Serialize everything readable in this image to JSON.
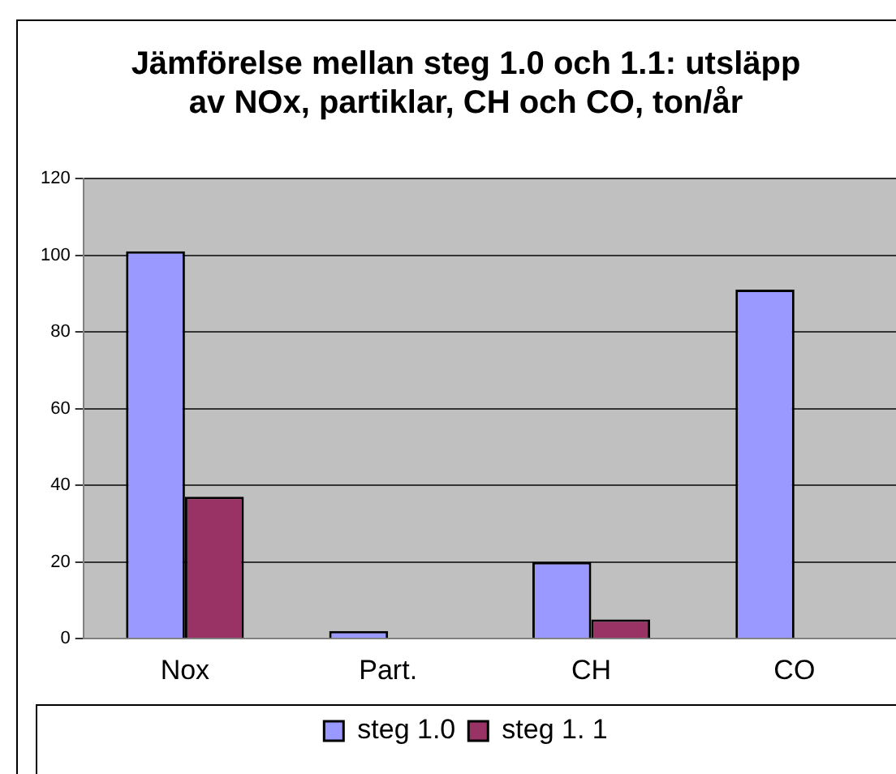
{
  "chart_data": {
    "type": "bar",
    "title": "Jämförelse mellan steg 1.0 och 1.1: utsläpp av NOx, partiklar, CH och CO, ton/år",
    "categories": [
      "Nox",
      "Part.",
      "CH",
      "CO"
    ],
    "series": [
      {
        "name": "steg 1.0",
        "color": "#9999ff",
        "values": [
          101,
          2,
          20,
          91
        ]
      },
      {
        "name": "steg 1. 1",
        "color": "#993366",
        "values": [
          37,
          null,
          5,
          null
        ]
      }
    ],
    "ylim": [
      0,
      120
    ],
    "yticks": [
      0,
      20,
      40,
      60,
      80,
      100,
      120
    ],
    "grid": "y",
    "legend": "bottom"
  }
}
